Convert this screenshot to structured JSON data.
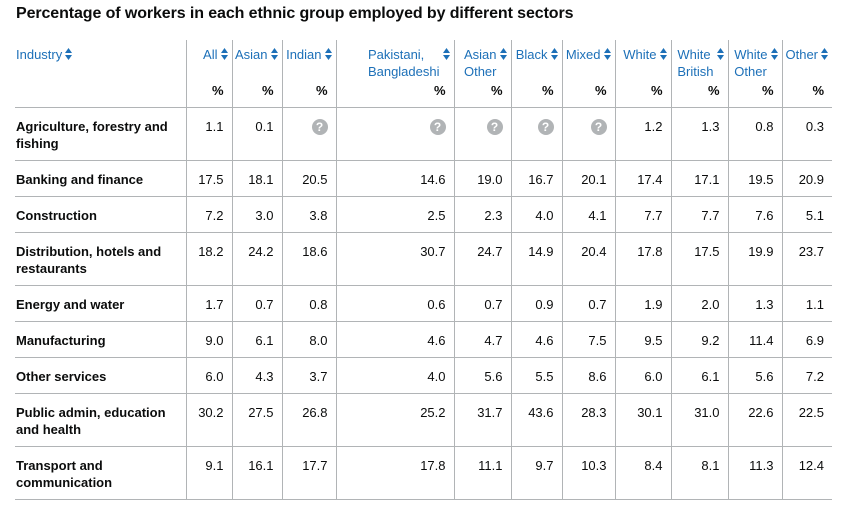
{
  "title": "Percentage of workers in each ethnic group employed by different sectors",
  "colors": {
    "link": "#1d70b8",
    "border": "#b1b4b6",
    "text": "#0b0c0c",
    "unknown": "#b1b4b6"
  },
  "unit_label": "%",
  "unknown_icon": "question-mark-circle-icon",
  "chart_data": {
    "type": "table",
    "title": "Percentage of workers in each ethnic group employed by different sectors",
    "row_header": "Industry",
    "unit": "%",
    "columns": [
      "All",
      "Asian",
      "Indian",
      "Pakistani,\nBangladeshi",
      "Asian\nOther",
      "Black",
      "Mixed",
      "White",
      "White\nBritish",
      "White\nOther",
      "Other"
    ],
    "rows": [
      {
        "label": "Agriculture, forestry and fishing",
        "values": [
          "1.1",
          "0.1",
          "?",
          "?",
          "?",
          "?",
          "?",
          "1.2",
          "1.3",
          "0.8",
          "0.3"
        ]
      },
      {
        "label": "Banking and finance",
        "values": [
          "17.5",
          "18.1",
          "20.5",
          "14.6",
          "19.0",
          "16.7",
          "20.1",
          "17.4",
          "17.1",
          "19.5",
          "20.9"
        ]
      },
      {
        "label": "Construction",
        "values": [
          "7.2",
          "3.0",
          "3.8",
          "2.5",
          "2.3",
          "4.0",
          "4.1",
          "7.7",
          "7.7",
          "7.6",
          "5.1"
        ]
      },
      {
        "label": "Distribution, hotels and restaurants",
        "values": [
          "18.2",
          "24.2",
          "18.6",
          "30.7",
          "24.7",
          "14.9",
          "20.4",
          "17.8",
          "17.5",
          "19.9",
          "23.7"
        ]
      },
      {
        "label": "Energy and water",
        "values": [
          "1.7",
          "0.7",
          "0.8",
          "0.6",
          "0.7",
          "0.9",
          "0.7",
          "1.9",
          "2.0",
          "1.3",
          "1.1"
        ]
      },
      {
        "label": "Manufacturing",
        "values": [
          "9.0",
          "6.1",
          "8.0",
          "4.6",
          "4.7",
          "4.6",
          "7.5",
          "9.5",
          "9.2",
          "11.4",
          "6.9"
        ]
      },
      {
        "label": "Other services",
        "values": [
          "6.0",
          "4.3",
          "3.7",
          "4.0",
          "5.6",
          "5.5",
          "8.6",
          "6.0",
          "6.1",
          "5.6",
          "7.2"
        ]
      },
      {
        "label": "Public admin, education and health",
        "values": [
          "30.2",
          "27.5",
          "26.8",
          "25.2",
          "31.7",
          "43.6",
          "28.3",
          "30.1",
          "31.0",
          "22.6",
          "22.5"
        ]
      },
      {
        "label": "Transport and communication",
        "values": [
          "9.1",
          "16.1",
          "17.7",
          "17.8",
          "11.1",
          "9.7",
          "10.3",
          "8.4",
          "8.1",
          "11.3",
          "12.4"
        ]
      }
    ]
  }
}
